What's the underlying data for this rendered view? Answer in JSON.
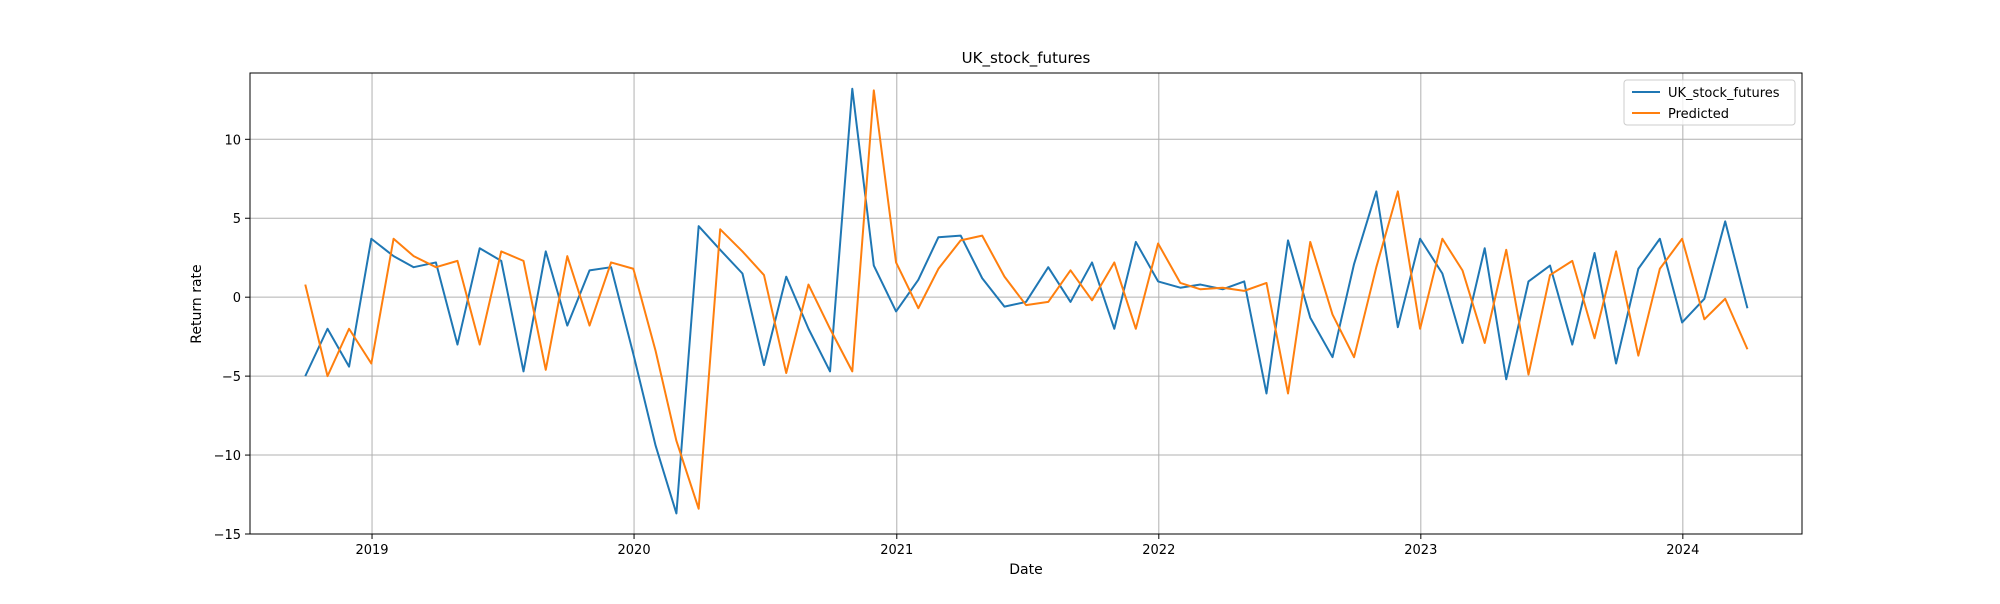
{
  "chart_data": {
    "type": "line",
    "title": "UK_stock_futures",
    "xlabel": "Date",
    "ylabel": "Return rate",
    "xlim": [
      "2018-07-15",
      "2024-06-15"
    ],
    "ylim": [
      -15,
      14.2
    ],
    "grid": true,
    "legend_position": "top-right",
    "x_ticks": [
      {
        "date": "2019-01-01",
        "label": "2019"
      },
      {
        "date": "2020-01-01",
        "label": "2020"
      },
      {
        "date": "2021-01-01",
        "label": "2021"
      },
      {
        "date": "2022-01-01",
        "label": "2022"
      },
      {
        "date": "2023-01-01",
        "label": "2023"
      },
      {
        "date": "2024-01-01",
        "label": "2024"
      }
    ],
    "y_ticks": [
      {
        "value": -15,
        "label": "−15"
      },
      {
        "value": -10,
        "label": "−10"
      },
      {
        "value": -5,
        "label": "−5"
      },
      {
        "value": 0,
        "label": "0"
      },
      {
        "value": 5,
        "label": "5"
      },
      {
        "value": 10,
        "label": "10"
      }
    ],
    "x": [
      "2018-09-30",
      "2018-10-31",
      "2018-11-30",
      "2018-12-31",
      "2019-01-31",
      "2019-02-28",
      "2019-03-31",
      "2019-04-30",
      "2019-05-31",
      "2019-06-30",
      "2019-07-31",
      "2019-08-31",
      "2019-09-30",
      "2019-10-31",
      "2019-11-30",
      "2019-12-31",
      "2020-01-31",
      "2020-02-29",
      "2020-03-31",
      "2020-04-30",
      "2020-05-31",
      "2020-06-30",
      "2020-07-31",
      "2020-08-31",
      "2020-09-30",
      "2020-10-31",
      "2020-11-30",
      "2020-12-31",
      "2021-01-31",
      "2021-02-28",
      "2021-03-31",
      "2021-04-30",
      "2021-05-31",
      "2021-06-30",
      "2021-07-31",
      "2021-08-31",
      "2021-09-30",
      "2021-10-31",
      "2021-11-30",
      "2021-12-31",
      "2022-01-31",
      "2022-02-28",
      "2022-03-31",
      "2022-04-30",
      "2022-05-31",
      "2022-06-30",
      "2022-07-31",
      "2022-08-31",
      "2022-09-30",
      "2022-10-31",
      "2022-11-30",
      "2022-12-31",
      "2023-01-31",
      "2023-02-28",
      "2023-03-31",
      "2023-04-30",
      "2023-05-31",
      "2023-06-30",
      "2023-07-31",
      "2023-08-31",
      "2023-09-30",
      "2023-10-31",
      "2023-11-30",
      "2023-12-31",
      "2024-01-31",
      "2024-02-29",
      "2024-03-31"
    ],
    "series": [
      {
        "name": "UK_stock_futures",
        "color": "#1f77b4",
        "values": [
          -5.0,
          -2.0,
          -4.4,
          3.7,
          2.6,
          1.9,
          2.2,
          -3.0,
          3.1,
          2.3,
          -4.7,
          2.9,
          -1.8,
          1.7,
          1.9,
          -3.6,
          -9.4,
          -13.7,
          4.5,
          3.0,
          1.5,
          -4.3,
          1.3,
          -2.0,
          -4.7,
          13.2,
          2.0,
          -0.9,
          1.1,
          3.8,
          3.9,
          1.2,
          -0.6,
          -0.3,
          1.9,
          -0.3,
          2.2,
          -2.0,
          3.5,
          1.0,
          0.6,
          0.8,
          0.5,
          1.0,
          -6.1,
          3.6,
          -1.3,
          -3.8,
          2.1,
          6.7,
          -1.9,
          3.7,
          1.5,
          -2.9,
          3.1,
          -5.2,
          1.0,
          2.0,
          -3.0,
          2.8,
          -4.2,
          1.8,
          3.7,
          -1.6,
          -0.1,
          4.8,
          -0.7
        ]
      },
      {
        "name": "Predicted",
        "color": "#ff7f0e",
        "values": [
          0.8,
          -5.0,
          -2.0,
          -4.2,
          3.7,
          2.6,
          1.9,
          2.3,
          -3.0,
          2.9,
          2.3,
          -4.6,
          2.6,
          -1.8,
          2.2,
          1.8,
          -3.4,
          -9.1,
          -13.4,
          4.3,
          2.9,
          1.4,
          -4.8,
          0.8,
          -2.0,
          -4.7,
          13.1,
          2.2,
          -0.7,
          1.8,
          3.6,
          3.9,
          1.3,
          -0.5,
          -0.3,
          1.7,
          -0.2,
          2.2,
          -2.0,
          3.4,
          0.9,
          0.5,
          0.6,
          0.4,
          0.9,
          -6.1,
          3.5,
          -1.1,
          -3.8,
          1.9,
          6.7,
          -2.0,
          3.7,
          1.7,
          -2.9,
          3.0,
          -4.9,
          1.4,
          2.3,
          -2.6,
          2.9,
          -3.7,
          1.8,
          3.7,
          -1.4,
          -0.1,
          -3.3
        ]
      }
    ]
  }
}
